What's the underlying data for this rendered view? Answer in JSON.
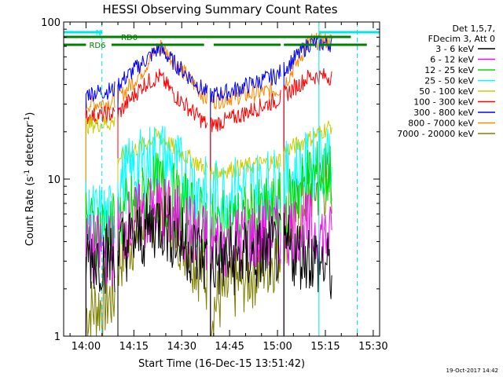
{
  "chart_data": {
    "type": "line",
    "title": "HESSI Observing Summary Count Rates",
    "xlabel": "Start Time (16-Dec-15 13:51:42)",
    "ylabel": "Count Rate (s⁻¹ detector⁻¹)",
    "ylabel_parts": {
      "base": "Count Rate (s",
      "exp1": "-1",
      "mid": " detector",
      "exp2": "-1",
      "end": ")"
    },
    "xaxis": {
      "unit": "minutes",
      "range": [
        "13:53",
        "15:32"
      ],
      "ticks": [
        {
          "t": "14:00",
          "label": "14:00"
        },
        {
          "t": "14:15",
          "label": "14:15"
        },
        {
          "t": "14:30",
          "label": "14:30"
        },
        {
          "t": "14:45",
          "label": "14:45"
        },
        {
          "t": "15:00",
          "label": "15:00"
        },
        {
          "t": "15:15",
          "label": "15:15"
        },
        {
          "t": "15:30",
          "label": "15:30"
        }
      ]
    },
    "yaxis": {
      "scale": "log",
      "range": [
        1,
        100
      ],
      "ticks": [
        {
          "v": 1,
          "label": "1"
        },
        {
          "v": 10,
          "label": "10"
        },
        {
          "v": 100,
          "label": "100"
        }
      ]
    },
    "legend": {
      "placement": "right",
      "header": [
        "Det 1,5,7,",
        "FDecim 3, Att 0"
      ],
      "entries": [
        {
          "label": "3 - 6 keV",
          "color": "#000000"
        },
        {
          "label": "6 - 12 keV",
          "color": "#ff00ff"
        },
        {
          "label": "12 - 25 keV",
          "color": "#00dd00"
        },
        {
          "label": "25 - 50 keV",
          "color": "#00ffff"
        },
        {
          "label": "50 - 100 keV",
          "color": "#cccc00"
        },
        {
          "label": "100 - 300 keV",
          "color": "#ff0000"
        },
        {
          "label": "300 - 800 keV",
          "color": "#0000ff"
        },
        {
          "label": "800 - 7000 keV",
          "color": "#ff8800"
        },
        {
          "label": "7000 - 20000 keV",
          "color": "#808000"
        }
      ]
    },
    "markers": {
      "night": {
        "label": "N",
        "color": "#00e5e5",
        "intervals": [
          [
            "13:53",
            "14:05"
          ],
          [
            "15:13",
            "15:32"
          ]
        ]
      },
      "rd0": {
        "label": "RD0",
        "color": "#008000",
        "intervals": [
          [
            "13:53",
            "15:23"
          ]
        ]
      },
      "rd6": {
        "label": "RD6",
        "color": "#008000",
        "intervals": [
          [
            "13:53",
            "14:00"
          ],
          [
            "14:08",
            "14:37"
          ],
          [
            "14:40",
            "15:01"
          ],
          [
            "15:02",
            "15:12"
          ],
          [
            "15:13",
            "15:28"
          ]
        ]
      },
      "vlines": [
        {
          "t": "14:05",
          "color": "#00e5e5",
          "style": "dashed"
        },
        {
          "t": "15:13",
          "color": "#00e5e5",
          "style": "solid"
        },
        {
          "t": "15:25",
          "color": "#00e5e5",
          "style": "dashed"
        }
      ]
    },
    "segments": [
      {
        "start": "14:00",
        "end": "14:09"
      },
      {
        "start": "14:10",
        "end": "14:38"
      },
      {
        "start": "14:39",
        "end": "15:01"
      },
      {
        "start": "15:02",
        "end": "15:17"
      }
    ],
    "series": [
      {
        "name": "3 - 6 keV",
        "color": "#000000",
        "x": [
          "14:00",
          "14:09",
          "14:10",
          "14:18",
          "14:23",
          "14:28",
          "14:38",
          "14:39",
          "14:45",
          "15:00",
          "15:01",
          "15:02",
          "15:10",
          "15:17"
        ],
        "y": [
          3.2,
          3.2,
          3.5,
          4.5,
          5.5,
          4.3,
          3.0,
          2.9,
          3.0,
          3.5,
          3.6,
          3.6,
          3.3,
          2.6
        ]
      },
      {
        "name": "6 - 12 keV",
        "color": "#ff00ff",
        "x": [
          "14:00",
          "14:09",
          "14:10",
          "14:18",
          "14:23",
          "14:28",
          "14:38",
          "14:39",
          "14:45",
          "15:00",
          "15:01",
          "15:02",
          "15:10",
          "15:17"
        ],
        "y": [
          3.5,
          3.6,
          4.6,
          5.8,
          6.5,
          5.5,
          4.0,
          3.8,
          4.0,
          4.6,
          4.7,
          4.8,
          4.8,
          4.0
        ]
      },
      {
        "name": "12 - 25 keV",
        "color": "#00dd00",
        "x": [
          "14:00",
          "14:09",
          "14:10",
          "14:18",
          "14:23",
          "14:28",
          "14:38",
          "14:39",
          "14:45",
          "15:00",
          "15:01",
          "15:02",
          "15:10",
          "15:17"
        ],
        "y": [
          4.8,
          4.8,
          5.5,
          7.3,
          9.0,
          7.2,
          5.0,
          4.8,
          5.0,
          6.3,
          6.4,
          6.4,
          10.0,
          11.0
        ]
      },
      {
        "name": "25 - 50 keV",
        "color": "#00ffff",
        "x": [
          "14:00",
          "14:09",
          "14:10",
          "14:18",
          "14:23",
          "14:28",
          "14:38",
          "14:39",
          "14:45",
          "15:00",
          "15:01",
          "15:02",
          "15:10",
          "15:17"
        ],
        "y": [
          5.6,
          5.6,
          9.5,
          12.5,
          14.5,
          12.0,
          8.0,
          7.8,
          8.2,
          9.5,
          9.7,
          10.0,
          12.0,
          15.0
        ]
      },
      {
        "name": "50 - 100 keV",
        "color": "#cccc00",
        "x": [
          "14:00",
          "14:09",
          "14:10",
          "14:18",
          "14:23",
          "14:28",
          "14:38",
          "14:39",
          "14:45",
          "15:00",
          "15:01",
          "15:02",
          "15:10",
          "15:17"
        ],
        "y": [
          22,
          23,
          13.5,
          16.5,
          19,
          15.5,
          11.5,
          11,
          11.5,
          13,
          13.5,
          15,
          18,
          22
        ]
      },
      {
        "name": "100 - 300 keV",
        "color": "#ff0000",
        "x": [
          "14:00",
          "14:09",
          "14:10",
          "14:18",
          "14:23",
          "14:28",
          "14:38",
          "14:39",
          "14:45",
          "15:00",
          "15:01",
          "15:02",
          "15:10",
          "15:17"
        ],
        "y": [
          25,
          26,
          26,
          40,
          45,
          34,
          22,
          22,
          24,
          32,
          33,
          34,
          45,
          45
        ]
      },
      {
        "name": "300 - 800 keV",
        "color": "#0000ff",
        "x": [
          "14:00",
          "14:09",
          "14:10",
          "14:18",
          "14:23",
          "14:28",
          "14:38",
          "14:39",
          "14:45",
          "15:00",
          "15:01",
          "15:02",
          "15:10",
          "15:17"
        ],
        "y": [
          35,
          37,
          40,
          56,
          68,
          54,
          35,
          34,
          36,
          46,
          48,
          50,
          73,
          73
        ]
      },
      {
        "name": "800 - 7000 keV",
        "color": "#ff8800",
        "x": [
          "14:00",
          "14:09",
          "14:10",
          "14:18",
          "14:23",
          "14:28",
          "14:38",
          "14:39",
          "14:45",
          "15:00",
          "15:01",
          "15:02",
          "15:10",
          "15:17"
        ],
        "y": [
          30,
          31,
          32,
          50,
          72,
          55,
          32,
          31,
          33,
          37,
          38,
          40,
          75,
          76
        ]
      },
      {
        "name": "7000 - 20000 keV",
        "color": "#808000",
        "x": [
          "14:00",
          "14:09",
          "14:10",
          "14:18",
          "14:23",
          "14:28",
          "14:38",
          "14:39",
          "14:45",
          "15:00",
          "15:01",
          "15:02",
          "15:10",
          "15:17"
        ],
        "y": [
          1.4,
          1.8,
          3.0,
          5.5,
          7.5,
          5.0,
          2.3,
          1.5,
          2.0,
          3.3,
          3.5,
          4.5,
          8.5,
          9.5
        ]
      }
    ],
    "grid": false
  },
  "timestamp": "19-Oct-2017 14:42"
}
